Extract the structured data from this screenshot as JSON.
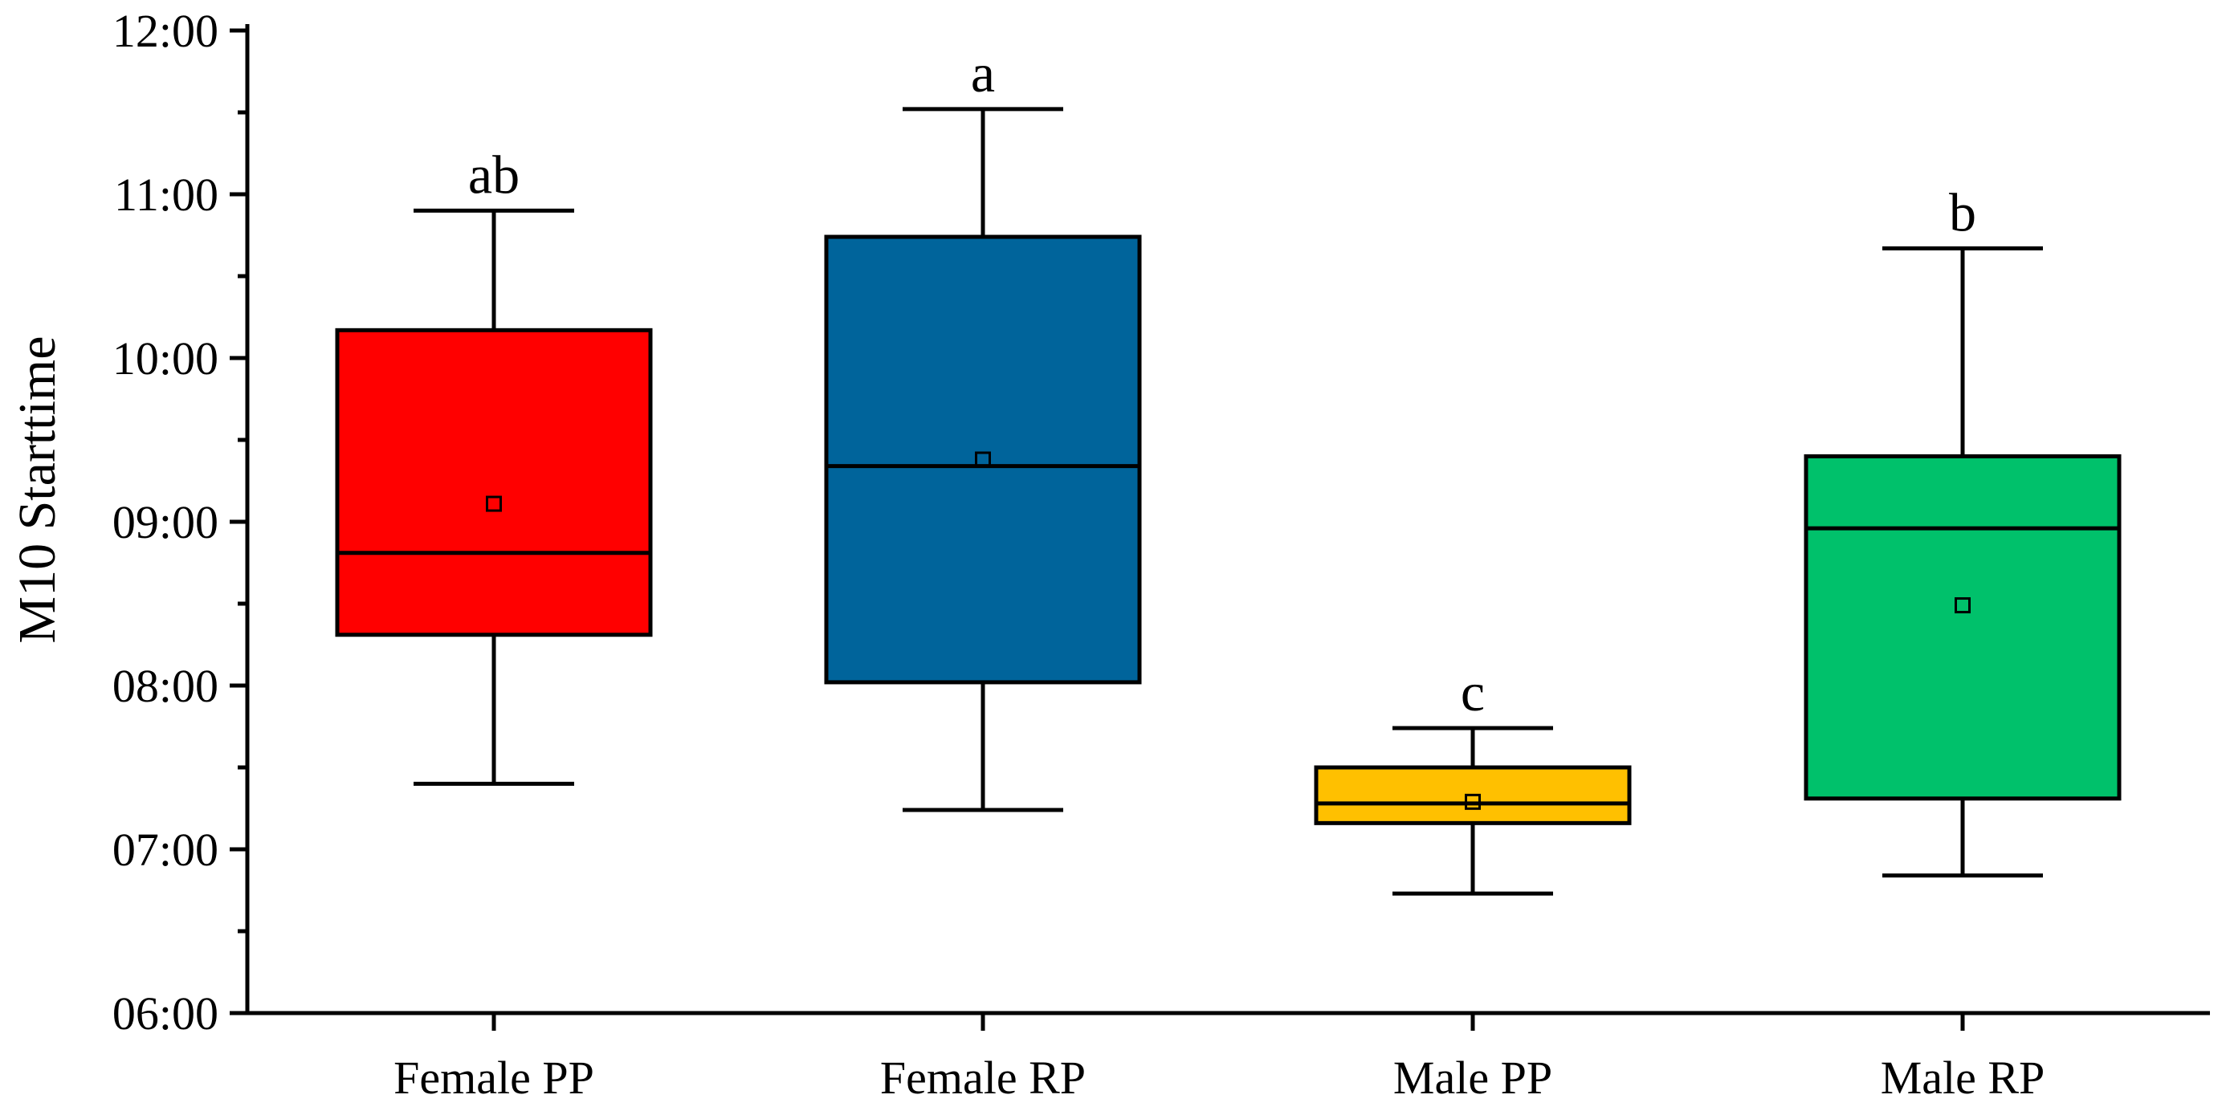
{
  "chart_data": {
    "type": "box",
    "title": "",
    "xlabel": "",
    "ylabel": "M10 Starttime",
    "ylim": [
      6,
      12
    ],
    "yticks": [
      {
        "value": 6,
        "label": "06:00"
      },
      {
        "value": 7,
        "label": "07:00"
      },
      {
        "value": 8,
        "label": "08:00"
      },
      {
        "value": 9,
        "label": "09:00"
      },
      {
        "value": 10,
        "label": "10:00"
      },
      {
        "value": 11,
        "label": "11:00"
      },
      {
        "value": 12,
        "label": "12:00"
      }
    ],
    "categories": [
      "Female PP",
      "Female RP",
      "Male PP",
      "Male RP"
    ],
    "boxes": [
      {
        "name": "Female PP",
        "color": "#ff0000",
        "whisker_low": 7.4,
        "q1": 8.31,
        "median": 8.81,
        "q3": 10.17,
        "whisker_high": 10.9,
        "mean": 9.11,
        "significance": "ab"
      },
      {
        "name": "Female RP",
        "color": "#00649b",
        "whisker_low": 7.24,
        "q1": 8.02,
        "median": 9.34,
        "q3": 10.74,
        "whisker_high": 11.52,
        "mean": 9.38,
        "significance": "a"
      },
      {
        "name": "Male PP",
        "color": "#ffc000",
        "whisker_low": 6.73,
        "q1": 7.16,
        "median": 7.28,
        "q3": 7.5,
        "whisker_high": 7.74,
        "mean": 7.29,
        "significance": "c"
      },
      {
        "name": "Male RP",
        "color": "#00c16b",
        "whisker_low": 6.84,
        "q1": 7.31,
        "median": 8.96,
        "q3": 9.4,
        "whisker_high": 10.67,
        "mean": 8.49,
        "significance": "b"
      }
    ]
  }
}
